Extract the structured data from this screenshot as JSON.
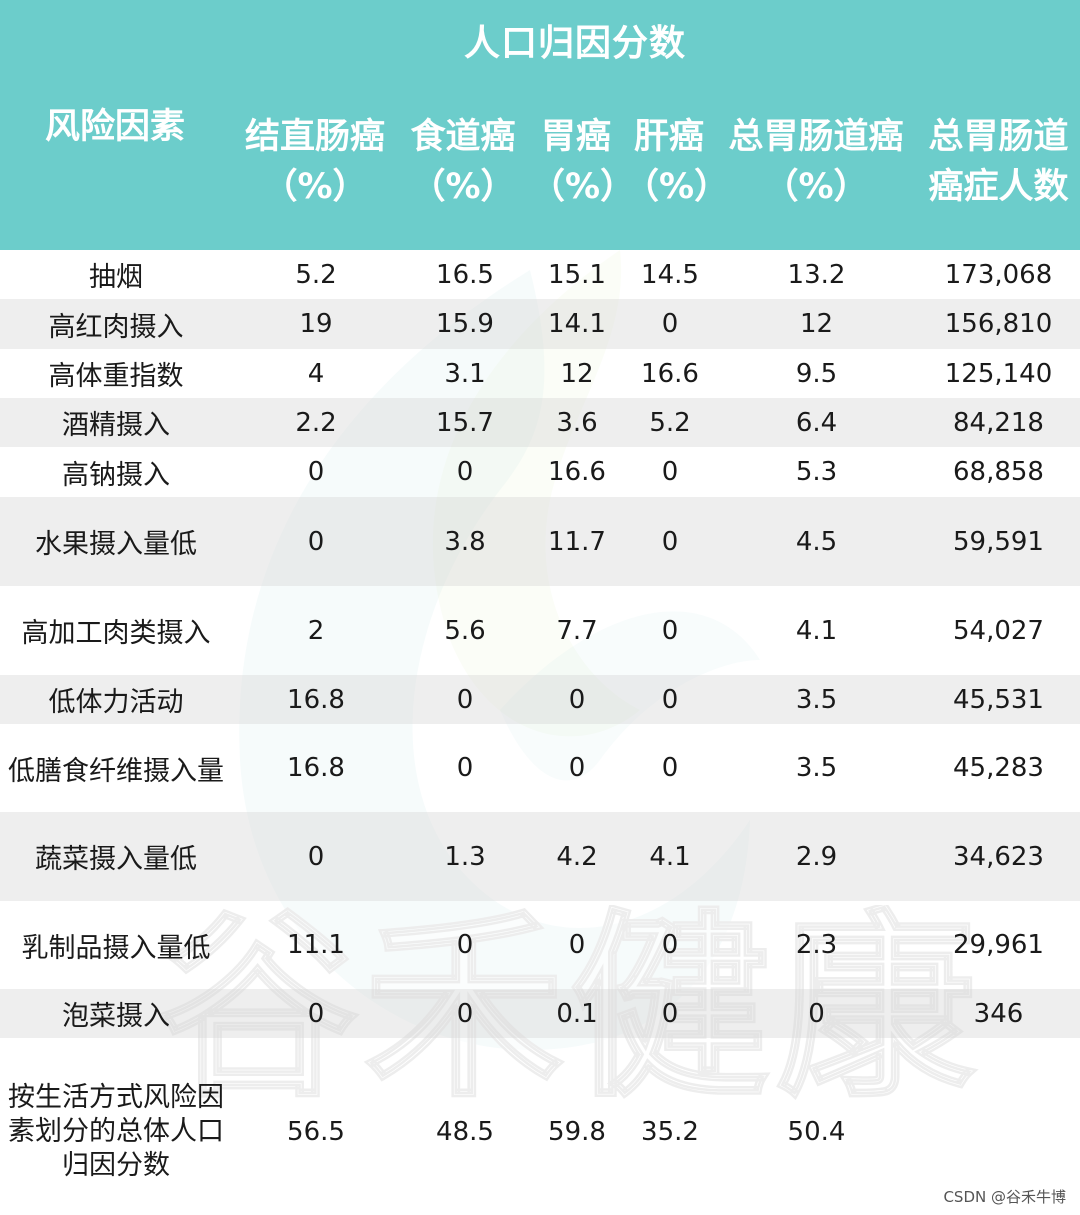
{
  "title": "人口归因分数",
  "headers": {
    "factor": "风险因素",
    "colorectal": [
      "结直肠癌",
      "（%）"
    ],
    "esophageal": [
      "食道癌",
      "（%）"
    ],
    "gastric": [
      "胃癌",
      "（%）"
    ],
    "liver": [
      "肝癌",
      "（%）"
    ],
    "total_gi": [
      "总胃肠道癌",
      "（%）"
    ],
    "total_cases": [
      "总胃肠道",
      "癌症人数"
    ]
  },
  "rows": [
    {
      "factor": "抽烟",
      "colorectal": "5.2",
      "esophageal": "16.5",
      "gastric": "15.1",
      "liver": "14.5",
      "total_gi": "13.2",
      "total_cases": "173,068"
    },
    {
      "factor": "高红肉摄入",
      "colorectal": "19",
      "esophageal": "15.9",
      "gastric": "14.1",
      "liver": "0",
      "total_gi": "12",
      "total_cases": "156,810"
    },
    {
      "factor": "高体重指数",
      "colorectal": "4",
      "esophageal": "3.1",
      "gastric": "12",
      "liver": "16.6",
      "total_gi": "9.5",
      "total_cases": "125,140"
    },
    {
      "factor": "酒精摄入",
      "colorectal": "2.2",
      "esophageal": "15.7",
      "gastric": "3.6",
      "liver": "5.2",
      "total_gi": "6.4",
      "total_cases": "84,218"
    },
    {
      "factor": "高钠摄入",
      "colorectal": "0",
      "esophageal": "0",
      "gastric": "16.6",
      "liver": "0",
      "total_gi": "5.3",
      "total_cases": "68,858"
    },
    {
      "factor": "水果摄入量低",
      "colorectal": "0",
      "esophageal": "3.8",
      "gastric": "11.7",
      "liver": "0",
      "total_gi": "4.5",
      "total_cases": "59,591"
    },
    {
      "factor": "高加工肉类摄入",
      "colorectal": "2",
      "esophageal": "5.6",
      "gastric": "7.7",
      "liver": "0",
      "total_gi": "4.1",
      "total_cases": "54,027"
    },
    {
      "factor": "低体力活动",
      "colorectal": "16.8",
      "esophageal": "0",
      "gastric": "0",
      "liver": "0",
      "total_gi": "3.5",
      "total_cases": "45,531"
    },
    {
      "factor": "低膳食纤维摄入量",
      "colorectal": "16.8",
      "esophageal": "0",
      "gastric": "0",
      "liver": "0",
      "total_gi": "3.5",
      "total_cases": "45,283"
    },
    {
      "factor": "蔬菜摄入量低",
      "colorectal": "0",
      "esophageal": "1.3",
      "gastric": "4.2",
      "liver": "4.1",
      "total_gi": "2.9",
      "total_cases": "34,623"
    },
    {
      "factor": "乳制品摄入量低",
      "colorectal": "11.1",
      "esophageal": "0",
      "gastric": "0",
      "liver": "0",
      "total_gi": "2.3",
      "total_cases": "29,961"
    },
    {
      "factor": "泡菜摄入",
      "colorectal": "0",
      "esophageal": "0",
      "gastric": "0.1",
      "liver": "0",
      "total_gi": "0",
      "total_cases": "346"
    }
  ],
  "total_row": {
    "factor": "按生活方式风险因素划分的总体人口归因分数",
    "colorectal": "56.5",
    "esophageal": "48.5",
    "gastric": "59.8",
    "liver": "35.2",
    "total_gi": "50.4",
    "total_cases": ""
  },
  "watermark_text": "谷禾健康",
  "credit": "CSDN @谷禾牛博",
  "colors": {
    "header_bg": "#6ccdcb",
    "header_text": "#ffffff",
    "row_stripe": "#e7e7e7",
    "watermark_teal": "#3fa5b5",
    "watermark_green": "#c8df8e"
  }
}
